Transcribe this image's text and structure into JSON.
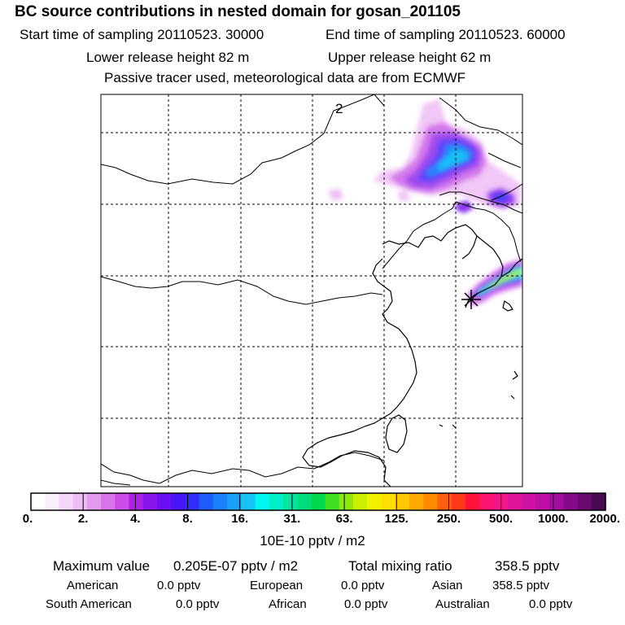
{
  "header": {
    "title": "BC  source contributions in nested domain for gosan_201105",
    "start_time": "Start time of sampling 20110523. 30000",
    "end_time": "End time of sampling 20110523. 60000",
    "lower_height": "Lower release height   82 m",
    "upper_height": "Upper release height   62 m",
    "note": "Passive tracer used, meteorological data are from ECMWF"
  },
  "map": {
    "contour_label": "2",
    "marker": "receptor-star"
  },
  "colorbar": {
    "units": "10E-10 pptv / m2",
    "tick_labels": [
      "0.",
      "2.",
      "4.",
      "8.",
      "16.",
      "31.",
      "63.",
      "125.",
      "250.",
      "500.",
      "1000.",
      "2000."
    ],
    "colors": [
      "#ffffff",
      "#fbeefc",
      "#f4d6f8",
      "#ecbcf4",
      "#e29aef",
      "#d774ea",
      "#c84ee6",
      "#b020e6",
      "#8a14ec",
      "#6a10f2",
      "#4a16f8",
      "#2f2efc",
      "#1f5cfc",
      "#1a80fc",
      "#18a0fa",
      "#14c4f6",
      "#00f6f0",
      "#00eec8",
      "#00e6a0",
      "#00de7c",
      "#00d84e",
      "#40e020",
      "#8ce810",
      "#c8f000",
      "#f2f200",
      "#fde000",
      "#ffc800",
      "#ffaa00",
      "#ff8c00",
      "#ff6010",
      "#ff3a1a",
      "#ff1438",
      "#ff1470",
      "#f4148c",
      "#e2149a",
      "#d012a2",
      "#bc10a6",
      "#a40ea0",
      "#860a88",
      "#6a0a70",
      "#4a0a50"
    ]
  },
  "footer": {
    "max_label": "Maximum value",
    "max_value": "0.205E-07 pptv / m2",
    "total_label": "Total mixing ratio",
    "total_value": "358.5 pptv",
    "american_label": "American",
    "american_value": "0.0 pptv",
    "european_label": "European",
    "european_value": "0.0 pptv",
    "asian_label": "Asian",
    "asian_value": "358.5 pptv",
    "south_american_label": "South American",
    "south_american_value": "0.0 pptv",
    "african_label": "African",
    "african_value": "0.0 pptv",
    "australian_label": "Australian",
    "australian_value": "0.0 pptv"
  }
}
